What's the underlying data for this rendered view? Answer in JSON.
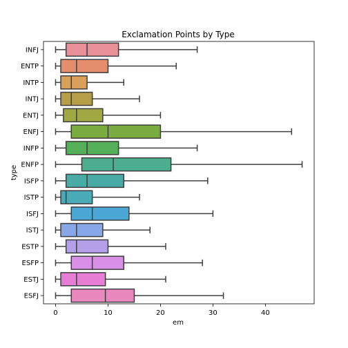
{
  "chart_data": {
    "type": "box",
    "title": "Exclamation Points by Type",
    "xlabel": "em",
    "ylabel": "type",
    "xlim": [
      -2.3,
      49.3
    ],
    "xticks": [
      0,
      10,
      20,
      30,
      40
    ],
    "grid": false,
    "orientation": "horizontal",
    "categories": [
      "INFJ",
      "ENTP",
      "INTP",
      "INTJ",
      "ENTJ",
      "ENFJ",
      "INFP",
      "ENFP",
      "ISFP",
      "ISTP",
      "ISFJ",
      "ISTJ",
      "ESTP",
      "ESFP",
      "ESTJ",
      "ESFJ"
    ],
    "colors": [
      "#e8919b",
      "#e58e6e",
      "#d9a05b",
      "#b59e47",
      "#9fa841",
      "#7aac3f",
      "#55b05a",
      "#4cae8f",
      "#48aca5",
      "#4aabb8",
      "#4ba7d6",
      "#87a7e8",
      "#b49fe9",
      "#d890e6",
      "#e67ed6",
      "#e888bf"
    ],
    "boxes": [
      {
        "whislo": 0,
        "q1": 2,
        "med": 6,
        "q3": 12,
        "whishi": 27
      },
      {
        "whislo": 0,
        "q1": 1,
        "med": 4,
        "q3": 10,
        "whishi": 23
      },
      {
        "whislo": 0,
        "q1": 1,
        "med": 3,
        "q3": 6,
        "whishi": 13
      },
      {
        "whislo": 0,
        "q1": 1,
        "med": 3,
        "q3": 7,
        "whishi": 16
      },
      {
        "whislo": 0,
        "q1": 1.5,
        "med": 4,
        "q3": 9,
        "whishi": 20
      },
      {
        "whislo": 0,
        "q1": 3,
        "med": 10,
        "q3": 20,
        "whishi": 45
      },
      {
        "whislo": 0,
        "q1": 2,
        "med": 6,
        "q3": 12,
        "whishi": 27
      },
      {
        "whislo": 0,
        "q1": 5,
        "med": 11,
        "q3": 22,
        "whishi": 47
      },
      {
        "whislo": 0,
        "q1": 2,
        "med": 6,
        "q3": 13,
        "whishi": 29
      },
      {
        "whislo": 0,
        "q1": 1,
        "med": 2,
        "q3": 7,
        "whishi": 16
      },
      {
        "whislo": 0,
        "q1": 3,
        "med": 7,
        "q3": 14,
        "whishi": 30
      },
      {
        "whislo": 0,
        "q1": 1,
        "med": 4,
        "q3": 9,
        "whishi": 18
      },
      {
        "whislo": 0,
        "q1": 2,
        "med": 4,
        "q3": 10,
        "whishi": 21
      },
      {
        "whislo": 0,
        "q1": 3,
        "med": 7,
        "q3": 13,
        "whishi": 28
      },
      {
        "whislo": 0,
        "q1": 1,
        "med": 4,
        "q3": 9.5,
        "whishi": 21
      },
      {
        "whislo": 0,
        "q1": 3,
        "med": 9.5,
        "q3": 15,
        "whishi": 32
      }
    ]
  }
}
